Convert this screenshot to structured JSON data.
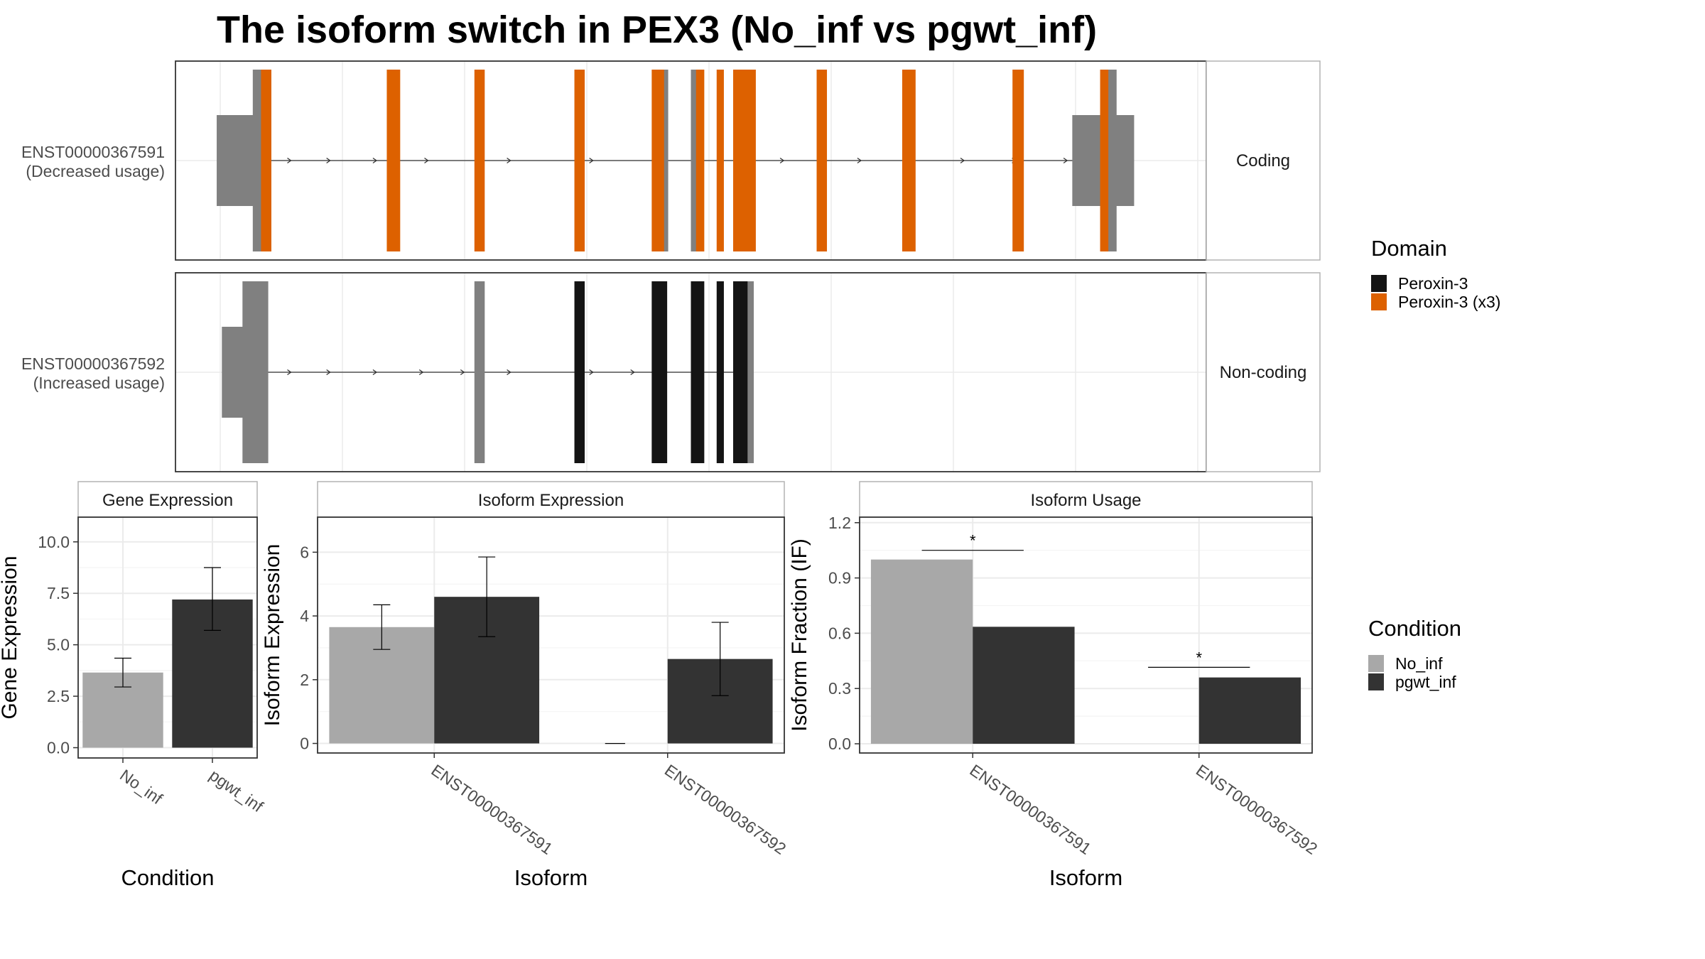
{
  "title": "The isoform switch in PEX3 (No_inf vs pgwt_inf)",
  "colors": {
    "utr": "#808080",
    "domain_peroxin3": "#141414",
    "domain_peroxin3_x3": "#dd6100",
    "no_inf": "#a8a8a8",
    "pgwt_inf": "#333333",
    "grid": "#ebebeb",
    "panel_border": "#333333",
    "strip_border": "#b3b3b3"
  },
  "transcripts": [
    {
      "label_id": "ENST00000367591",
      "label_usage": "(Decreased usage)",
      "strip": "Coding",
      "utr_blocks": [
        [
          0.04,
          0.085
        ],
        [
          0.87,
          0.93
        ]
      ],
      "exons": [
        {
          "start": 0.075,
          "end": 0.093,
          "type": "utr"
        },
        {
          "start": 0.083,
          "end": 0.093,
          "type": "domain_peroxin3_x3"
        },
        {
          "start": 0.205,
          "end": 0.218,
          "type": "domain_peroxin3_x3"
        },
        {
          "start": 0.29,
          "end": 0.3,
          "type": "domain_peroxin3_x3"
        },
        {
          "start": 0.387,
          "end": 0.397,
          "type": "domain_peroxin3_x3"
        },
        {
          "start": 0.462,
          "end": 0.477,
          "type": "domain_peroxin3_x3"
        },
        {
          "start": 0.474,
          "end": 0.478,
          "type": "utr"
        },
        {
          "start": 0.5,
          "end": 0.506,
          "type": "utr"
        },
        {
          "start": 0.505,
          "end": 0.513,
          "type": "domain_peroxin3_x3"
        },
        {
          "start": 0.525,
          "end": 0.532,
          "type": "domain_peroxin3_x3"
        },
        {
          "start": 0.541,
          "end": 0.563,
          "type": "domain_peroxin3_x3"
        },
        {
          "start": 0.622,
          "end": 0.632,
          "type": "domain_peroxin3_x3"
        },
        {
          "start": 0.705,
          "end": 0.718,
          "type": "domain_peroxin3_x3"
        },
        {
          "start": 0.812,
          "end": 0.823,
          "type": "domain_peroxin3_x3"
        },
        {
          "start": 0.897,
          "end": 0.906,
          "type": "domain_peroxin3_x3"
        },
        {
          "start": 0.905,
          "end": 0.913,
          "type": "utr"
        }
      ],
      "intron_range": [
        0.085,
        0.905
      ],
      "arrows": [
        0.112,
        0.15,
        0.195,
        0.245,
        0.325,
        0.405,
        0.475,
        0.59,
        0.665,
        0.765,
        0.815,
        0.865
      ]
    },
    {
      "label_id": "ENST00000367592",
      "label_usage": "(Increased usage)",
      "strip": "Non-coding",
      "utr_blocks": [
        [
          0.045,
          0.085
        ]
      ],
      "exons": [
        {
          "start": 0.065,
          "end": 0.078,
          "type": "utr"
        },
        {
          "start": 0.077,
          "end": 0.09,
          "type": "utr"
        },
        {
          "start": 0.29,
          "end": 0.3,
          "type": "utr"
        },
        {
          "start": 0.387,
          "end": 0.397,
          "type": "domain_peroxin3"
        },
        {
          "start": 0.462,
          "end": 0.477,
          "type": "domain_peroxin3"
        },
        {
          "start": 0.5,
          "end": 0.513,
          "type": "domain_peroxin3"
        },
        {
          "start": 0.525,
          "end": 0.532,
          "type": "domain_peroxin3"
        },
        {
          "start": 0.541,
          "end": 0.556,
          "type": "domain_peroxin3"
        },
        {
          "start": 0.555,
          "end": 0.561,
          "type": "utr"
        }
      ],
      "intron_range": [
        0.085,
        0.545
      ],
      "arrows": [
        0.112,
        0.15,
        0.195,
        0.24,
        0.28,
        0.325,
        0.405,
        0.445
      ]
    }
  ],
  "domain_legend": {
    "title": "Domain",
    "items": [
      {
        "label": "Peroxin-3",
        "color_key": "domain_peroxin3"
      },
      {
        "label": "Peroxin-3 (x3)",
        "color_key": "domain_peroxin3_x3"
      }
    ]
  },
  "condition_legend": {
    "title": "Condition",
    "items": [
      {
        "label": "No_inf",
        "color_key": "no_inf"
      },
      {
        "label": "pgwt_inf",
        "color_key": "pgwt_inf"
      }
    ]
  },
  "chart_data": [
    {
      "type": "bar",
      "title": "Gene Expression",
      "categories": [
        "No_inf",
        "pgwt_inf"
      ],
      "values": [
        3.65,
        7.2
      ],
      "errors_low": [
        2.95,
        5.7
      ],
      "errors_high": [
        4.35,
        8.75
      ],
      "ylim": [
        -0.5,
        11.2
      ],
      "yticks": [
        "0.0",
        "2.5",
        "5.0",
        "7.5",
        "10.0"
      ],
      "ytick_values": [
        0,
        2.5,
        5,
        7.5,
        10
      ],
      "xlabel": "Condition",
      "ylabel": "Gene Expression"
    },
    {
      "type": "bar",
      "title": "Isoform Expression",
      "categories": [
        "ENST00000367591",
        "ENST00000367592"
      ],
      "series": [
        {
          "name": "No_inf",
          "values": [
            3.65,
            0.0
          ],
          "errors_low": [
            2.95,
            0.0
          ],
          "errors_high": [
            4.35,
            0.0
          ]
        },
        {
          "name": "pgwt_inf",
          "values": [
            4.6,
            2.65
          ],
          "errors_low": [
            3.35,
            1.5
          ],
          "errors_high": [
            5.85,
            3.8
          ]
        }
      ],
      "ylim": [
        -0.3,
        7.1
      ],
      "yticks": [
        "0",
        "2",
        "4",
        "6"
      ],
      "ytick_values": [
        0,
        2,
        4,
        6
      ],
      "xlabel": "Isoform",
      "ylabel": "Isoform Expression"
    },
    {
      "type": "bar",
      "title": "Isoform Usage",
      "categories": [
        "ENST00000367591",
        "ENST00000367592"
      ],
      "series": [
        {
          "name": "No_inf",
          "values": [
            1.0,
            0.0
          ]
        },
        {
          "name": "pgwt_inf",
          "values": [
            0.635,
            0.36
          ]
        }
      ],
      "significance": [
        {
          "category_index": 0,
          "y": 1.05,
          "label": "*"
        },
        {
          "category_index": 1,
          "y": 0.415,
          "label": "*"
        }
      ],
      "ylim": [
        -0.05,
        1.23
      ],
      "yticks": [
        "0.0",
        "0.3",
        "0.6",
        "0.9",
        "1.2"
      ],
      "ytick_values": [
        0,
        0.3,
        0.6,
        0.9,
        1.2
      ],
      "xlabel": "Isoform",
      "ylabel": "Isoform Fraction (IF)"
    }
  ]
}
